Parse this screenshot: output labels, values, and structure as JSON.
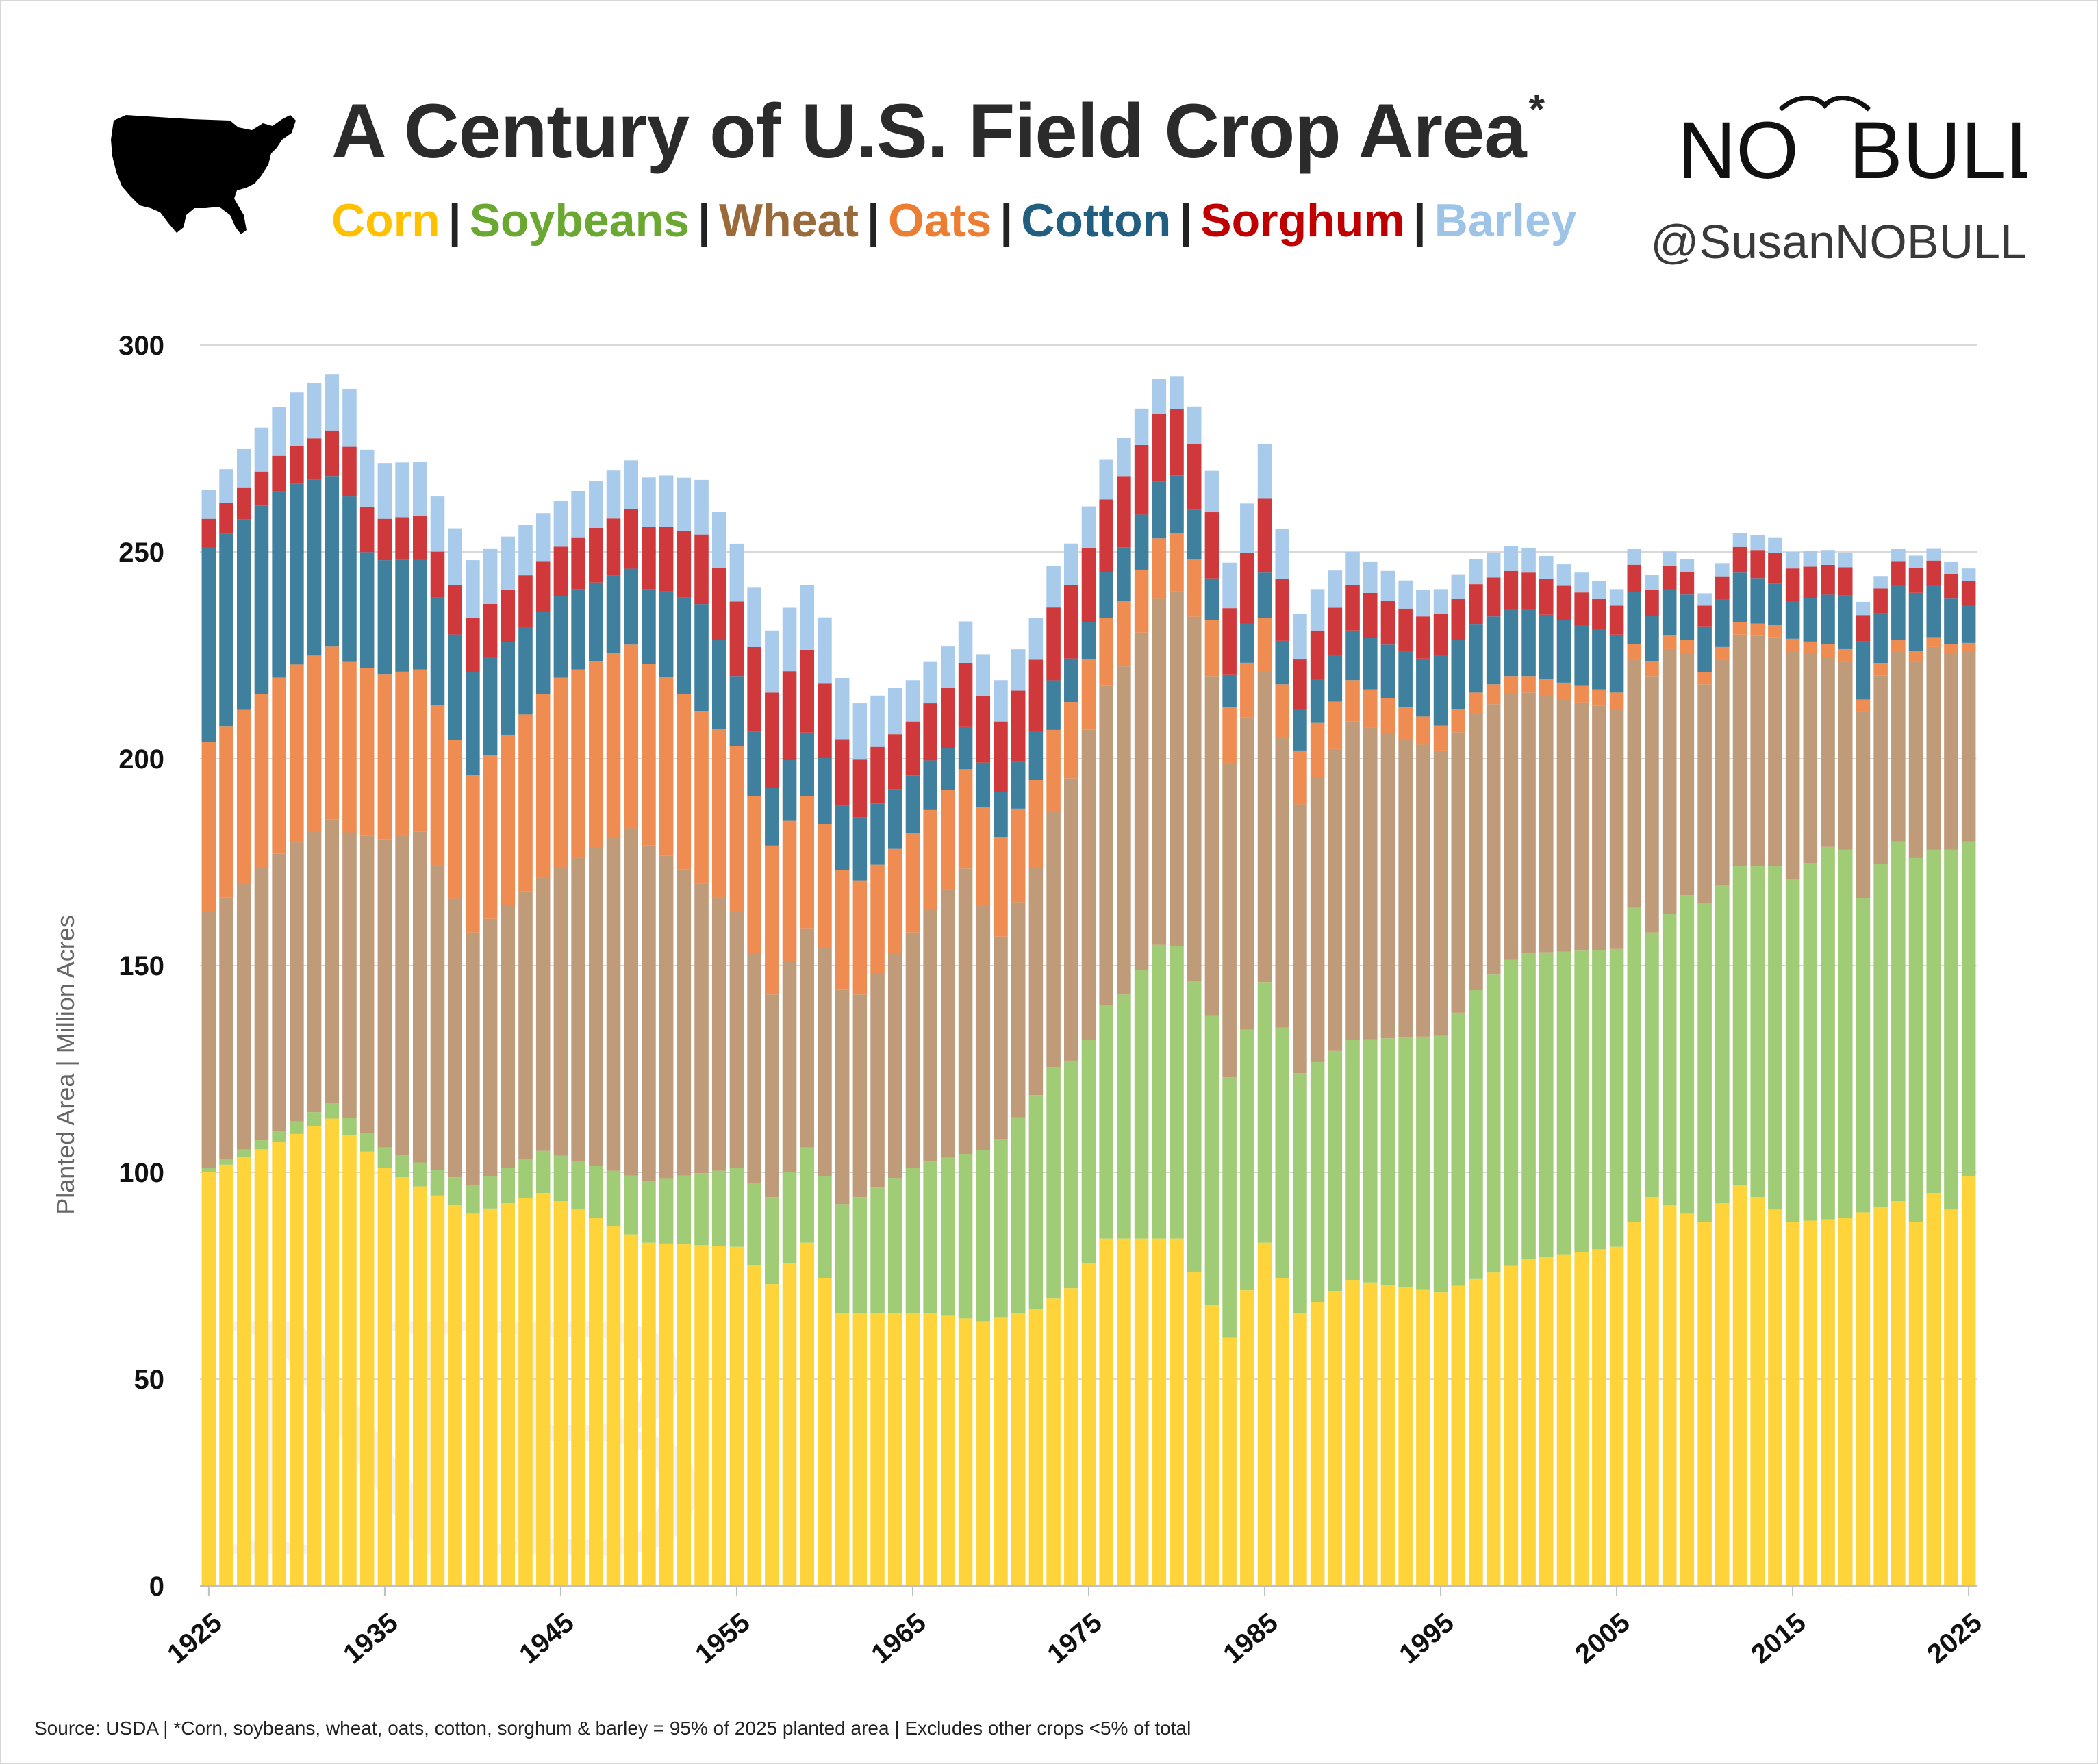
{
  "header": {
    "title": "A Century of U.S. Field Crop Area",
    "title_note": "*",
    "handle": "@SusanNOBULL",
    "brand_left": "NO",
    "brand_right": "BULL",
    "map_icon": "usa-map-icon"
  },
  "legend": [
    {
      "label": "Corn",
      "color": "#ffc000"
    },
    {
      "label": "Soybeans",
      "color": "#6aa832"
    },
    {
      "label": "Wheat",
      "color": "#9a6a3a"
    },
    {
      "label": "Oats",
      "color": "#ed7d31"
    },
    {
      "label": "Cotton",
      "color": "#215e80"
    },
    {
      "label": "Sorghum",
      "color": "#c00000"
    },
    {
      "label": "Barley",
      "color": "#9dc3e6"
    }
  ],
  "footer": {
    "source": "Source: USDA | *Corn, soybeans, wheat, oats, cotton, sorghum & barley = 95% of 2025 planted area | Excludes other crops <5% of total"
  },
  "chart_data": {
    "type": "bar",
    "stacked": true,
    "ylabel": "Planted Area | Million Acres",
    "ylim": [
      0,
      300
    ],
    "yticks": [
      0,
      50,
      100,
      150,
      200,
      250,
      300
    ],
    "xticks": [
      1925,
      1935,
      1945,
      1955,
      1965,
      1975,
      1985,
      1995,
      2005,
      2015,
      2025
    ],
    "series_colors": {
      "Corn": "#ffd43a",
      "Soybeans": "#9fcc75",
      "Wheat": "#bf9b7a",
      "Oats": "#ef8c52",
      "Cotton": "#40809f",
      "Sorghum": "#d0393b",
      "Barley": "#a8cbeb"
    },
    "anchors": {
      "Corn": [
        [
          1925,
          100
        ],
        [
          1932,
          113
        ],
        [
          1935,
          101
        ],
        [
          1940,
          90
        ],
        [
          1944,
          95
        ],
        [
          1950,
          83
        ],
        [
          1955,
          82
        ],
        [
          1957,
          73
        ],
        [
          1959,
          83
        ],
        [
          1961,
          66
        ],
        [
          1966,
          66
        ],
        [
          1969,
          64
        ],
        [
          1972,
          67
        ],
        [
          1974,
          72
        ],
        [
          1976,
          84
        ],
        [
          1980,
          84
        ],
        [
          1983,
          60
        ],
        [
          1985,
          83
        ],
        [
          1987,
          66
        ],
        [
          1990,
          74
        ],
        [
          1995,
          71
        ],
        [
          2000,
          79
        ],
        [
          2005,
          82
        ],
        [
          2007,
          94
        ],
        [
          2010,
          88
        ],
        [
          2012,
          97
        ],
        [
          2015,
          88
        ],
        [
          2018,
          89
        ],
        [
          2021,
          93
        ],
        [
          2022,
          88
        ],
        [
          2023,
          95
        ],
        [
          2024,
          91
        ],
        [
          2025,
          99
        ]
      ],
      "Soybeans": [
        [
          1925,
          1
        ],
        [
          1940,
          7
        ],
        [
          1945,
          11
        ],
        [
          1950,
          15
        ],
        [
          1955,
          19
        ],
        [
          1959,
          23
        ],
        [
          1962,
          28
        ],
        [
          1965,
          35
        ],
        [
          1970,
          43
        ],
        [
          1973,
          56
        ],
        [
          1975,
          54
        ],
        [
          1977,
          59
        ],
        [
          1979,
          71
        ],
        [
          1982,
          70
        ],
        [
          1983,
          63
        ],
        [
          1985,
          63
        ],
        [
          1987,
          58
        ],
        [
          1990,
          58
        ],
        [
          1995,
          62
        ],
        [
          1997,
          70
        ],
        [
          1999,
          74
        ],
        [
          2000,
          74
        ],
        [
          2005,
          72
        ],
        [
          2006,
          76
        ],
        [
          2007,
          64
        ],
        [
          2009,
          77
        ],
        [
          2012,
          77
        ],
        [
          2014,
          83
        ],
        [
          2015,
          83
        ],
        [
          2017,
          90
        ],
        [
          2018,
          89
        ],
        [
          2019,
          76
        ],
        [
          2020,
          83
        ],
        [
          2021,
          87
        ],
        [
          2022,
          88
        ],
        [
          2023,
          83
        ],
        [
          2024,
          87
        ],
        [
          2025,
          81
        ]
      ],
      "Wheat": [
        [
          1925,
          62
        ],
        [
          1929,
          67
        ],
        [
          1933,
          69
        ],
        [
          1937,
          80
        ],
        [
          1940,
          61
        ],
        [
          1944,
          66
        ],
        [
          1949,
          84
        ],
        [
          1951,
          78
        ],
        [
          1955,
          62
        ],
        [
          1957,
          49
        ],
        [
          1960,
          55
        ],
        [
          1962,
          49
        ],
        [
          1965,
          57
        ],
        [
          1968,
          69
        ],
        [
          1970,
          49
        ],
        [
          1972,
          55
        ],
        [
          1975,
          75
        ],
        [
          1981,
          88
        ],
        [
          1983,
          76
        ],
        [
          1985,
          75
        ],
        [
          1987,
          65
        ],
        [
          1990,
          77
        ],
        [
          1995,
          69
        ],
        [
          2000,
          63
        ],
        [
          2005,
          58
        ],
        [
          2008,
          64
        ],
        [
          2010,
          53
        ],
        [
          2012,
          56
        ],
        [
          2015,
          55
        ],
        [
          2017,
          46
        ],
        [
          2019,
          45
        ],
        [
          2021,
          46
        ],
        [
          2023,
          49
        ],
        [
          2025,
          46
        ]
      ],
      "Oats": [
        [
          1925,
          41
        ],
        [
          1930,
          43
        ],
        [
          1935,
          40
        ],
        [
          1940,
          38
        ],
        [
          1945,
          46
        ],
        [
          1950,
          44
        ],
        [
          1955,
          40
        ],
        [
          1960,
          30
        ],
        [
          1965,
          24
        ],
        [
          1970,
          24
        ],
        [
          1975,
          17
        ],
        [
          1980,
          14
        ],
        [
          1985,
          13
        ],
        [
          1988,
          13
        ],
        [
          1990,
          10
        ],
        [
          1995,
          6
        ],
        [
          2000,
          4
        ],
        [
          2005,
          4
        ],
        [
          2010,
          3
        ],
        [
          2015,
          3
        ],
        [
          2020,
          3
        ],
        [
          2025,
          2
        ]
      ],
      "Cotton": [
        [
          1925,
          47
        ],
        [
          1929,
          45
        ],
        [
          1933,
          40
        ],
        [
          1934,
          28
        ],
        [
          1940,
          25
        ],
        [
          1944,
          20
        ],
        [
          1950,
          18
        ],
        [
          1953,
          26
        ],
        [
          1955,
          17
        ],
        [
          1957,
          14
        ],
        [
          1960,
          16
        ],
        [
          1965,
          14
        ],
        [
          1967,
          10
        ],
        [
          1970,
          11
        ],
        [
          1973,
          12
        ],
        [
          1975,
          9
        ],
        [
          1977,
          13
        ],
        [
          1980,
          14
        ],
        [
          1983,
          8
        ],
        [
          1985,
          11
        ],
        [
          1987,
          10
        ],
        [
          1990,
          12
        ],
        [
          1994,
          14
        ],
        [
          1995,
          17
        ],
        [
          2000,
          16
        ],
        [
          2005,
          14
        ],
        [
          2007,
          11
        ],
        [
          2010,
          11
        ],
        [
          2012,
          12
        ],
        [
          2015,
          9
        ],
        [
          2017,
          12
        ],
        [
          2019,
          14
        ],
        [
          2020,
          12
        ],
        [
          2022,
          14
        ],
        [
          2024,
          11
        ],
        [
          2025,
          9
        ]
      ],
      "Sorghum": [
        [
          1925,
          7
        ],
        [
          1930,
          9
        ],
        [
          1933,
          12
        ],
        [
          1935,
          10
        ],
        [
          1938,
          11
        ],
        [
          1940,
          13
        ],
        [
          1945,
          12
        ],
        [
          1950,
          15
        ],
        [
          1955,
          18
        ],
        [
          1957,
          23
        ],
        [
          1959,
          20
        ],
        [
          1962,
          14
        ],
        [
          1965,
          13
        ],
        [
          1970,
          17
        ],
        [
          1975,
          18
        ],
        [
          1980,
          16
        ],
        [
          1983,
          16
        ],
        [
          1985,
          18
        ],
        [
          1987,
          12
        ],
        [
          1990,
          11
        ],
        [
          1995,
          10
        ],
        [
          2000,
          9
        ],
        [
          2005,
          7
        ],
        [
          2010,
          5
        ],
        [
          2015,
          8
        ],
        [
          2020,
          6
        ],
        [
          2024,
          6
        ],
        [
          2025,
          6
        ]
      ],
      "Barley": [
        [
          1925,
          7
        ],
        [
          1930,
          13
        ],
        [
          1933,
          14
        ],
        [
          1937,
          13
        ],
        [
          1940,
          14
        ],
        [
          1945,
          11
        ],
        [
          1950,
          12
        ],
        [
          1955,
          14
        ],
        [
          1957,
          15
        ],
        [
          1960,
          16
        ],
        [
          1965,
          10
        ],
        [
          1970,
          10
        ],
        [
          1975,
          10
        ],
        [
          1980,
          8
        ],
        [
          1985,
          13
        ],
        [
          1987,
          11
        ],
        [
          1990,
          8
        ],
        [
          1995,
          6
        ],
        [
          2000,
          6
        ],
        [
          2005,
          4
        ],
        [
          2010,
          3
        ],
        [
          2015,
          4
        ],
        [
          2020,
          3
        ],
        [
          2025,
          3
        ]
      ]
    }
  }
}
